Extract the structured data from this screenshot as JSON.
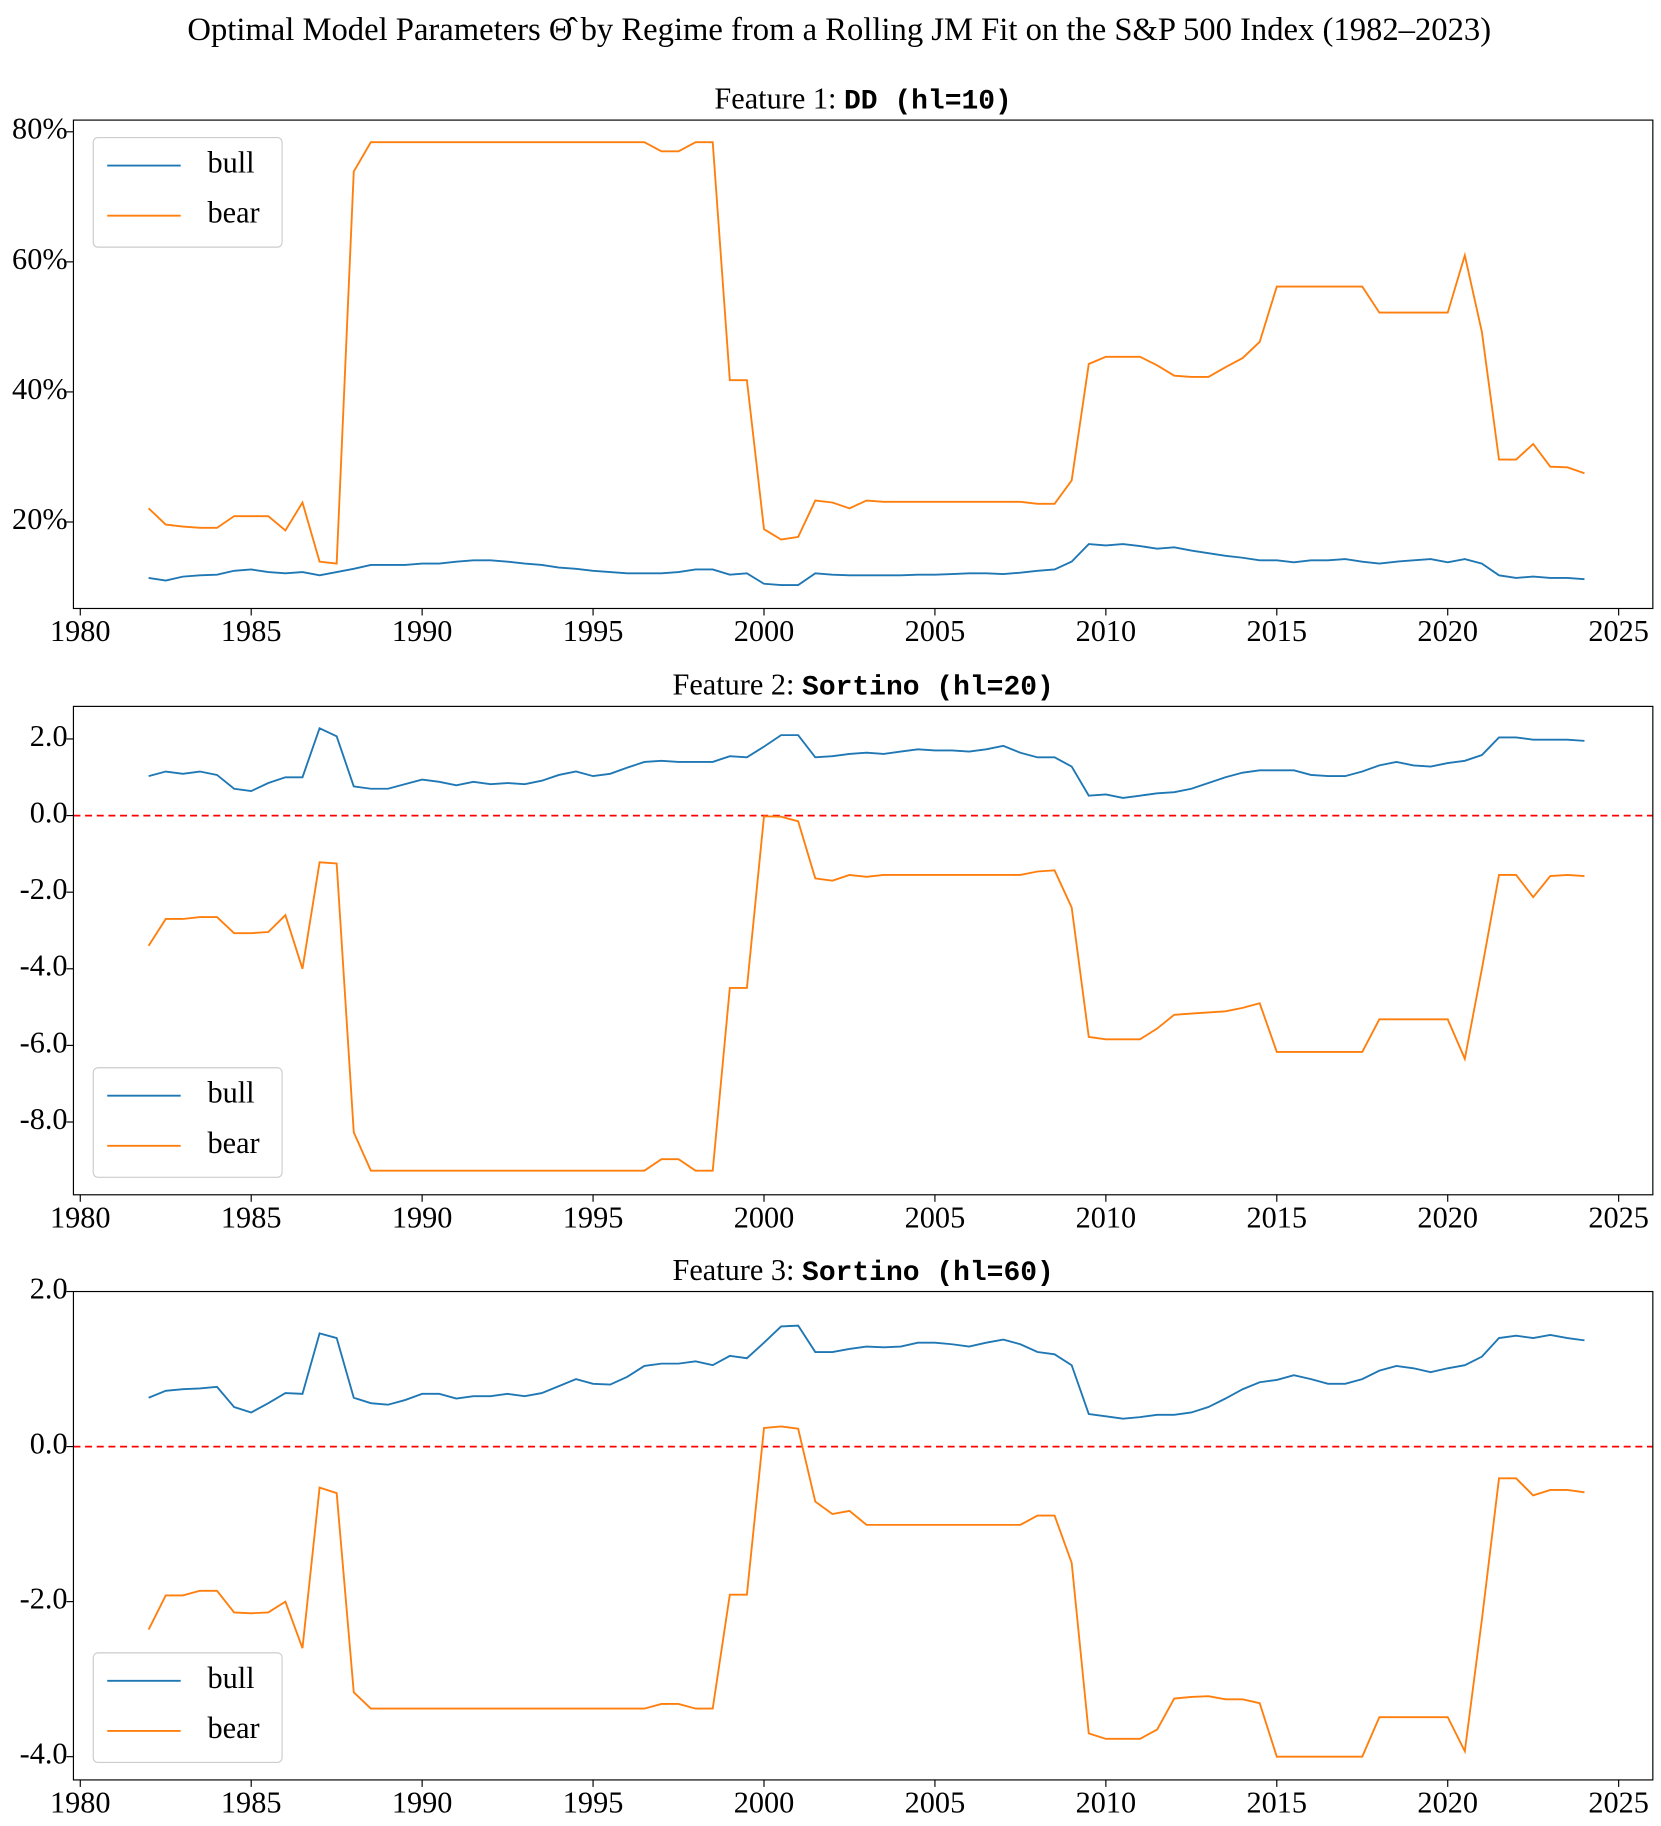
{
  "title": "Optimal Model Parameters Θ̂ by Regime from a Rolling JM Fit on the S&P 500 Index (1982–2023)",
  "chart_data": [
    {
      "type": "line",
      "title": "Feature 1: ",
      "title_code": "DD (hl=10)",
      "legend": "upper left",
      "x": [
        1982,
        1982.5,
        1983,
        1983.5,
        1984,
        1984.5,
        1985,
        1985.5,
        1986,
        1986.5,
        1987,
        1987.5,
        1988,
        1988.5,
        1989,
        1989.5,
        1990,
        1990.5,
        1991,
        1991.5,
        1992,
        1992.5,
        1993,
        1993.5,
        1994,
        1994.5,
        1995,
        1995.5,
        1996,
        1996.5,
        1997,
        1997.5,
        1998,
        1998.5,
        1999,
        1999.5,
        2000,
        2000.5,
        2001,
        2001.5,
        2002,
        2002.5,
        2003,
        2003.5,
        2004,
        2004.5,
        2005,
        2005.5,
        2006,
        2006.5,
        2007,
        2007.5,
        2008,
        2008.5,
        2009,
        2009.5,
        2010,
        2010.5,
        2011,
        2011.5,
        2012,
        2012.5,
        2013,
        2013.5,
        2014,
        2014.5,
        2015,
        2015.5,
        2016,
        2016.5,
        2017,
        2017.5,
        2018,
        2018.5,
        2019,
        2019.5,
        2020,
        2020.5,
        2021,
        2021.5,
        2022,
        2022.5,
        2023,
        2023.5,
        2024
      ],
      "xlim": [
        1979.8,
        2026
      ],
      "xticks": [
        1980,
        1985,
        1990,
        1995,
        2000,
        2005,
        2010,
        2015,
        2020,
        2025
      ],
      "ylim": [
        6.7,
        81.8
      ],
      "yticks": [
        {
          "value": 20,
          "label": "20%"
        },
        {
          "value": 40,
          "label": "40%"
        },
        {
          "value": 60,
          "label": "60%"
        },
        {
          "value": 80,
          "label": "80%"
        }
      ],
      "series": [
        {
          "name": "bull",
          "color": "#1f77b4",
          "values": [
            11.4,
            11.0,
            11.6,
            11.8,
            11.9,
            12.5,
            12.7,
            12.3,
            12.1,
            12.3,
            11.8,
            12.3,
            12.8,
            13.4,
            13.4,
            13.4,
            13.6,
            13.6,
            13.9,
            14.1,
            14.1,
            13.9,
            13.6,
            13.4,
            13.0,
            12.8,
            12.5,
            12.3,
            12.1,
            12.1,
            12.1,
            12.3,
            12.7,
            12.7,
            11.9,
            12.1,
            10.5,
            10.3,
            10.3,
            12.1,
            11.9,
            11.8,
            11.8,
            11.8,
            11.8,
            11.9,
            11.9,
            12.0,
            12.1,
            12.1,
            12.0,
            12.2,
            12.5,
            12.7,
            13.9,
            16.6,
            16.4,
            16.6,
            16.3,
            15.9,
            16.1,
            15.6,
            15.2,
            14.8,
            14.5,
            14.1,
            14.1,
            13.8,
            14.1,
            14.1,
            14.3,
            13.9,
            13.6,
            13.9,
            14.1,
            14.3,
            13.8,
            14.3,
            13.6,
            11.8,
            11.4,
            11.6,
            11.4,
            11.4,
            11.2
          ]
        },
        {
          "name": "bear",
          "color": "#ff7f0e",
          "values": [
            22.1,
            19.6,
            19.3,
            19.1,
            19.1,
            20.9,
            20.9,
            20.9,
            18.7,
            23.0,
            13.9,
            13.6,
            73.9,
            78.4,
            78.4,
            78.4,
            78.4,
            78.4,
            78.4,
            78.4,
            78.4,
            78.4,
            78.4,
            78.4,
            78.4,
            78.4,
            78.4,
            78.4,
            78.4,
            78.4,
            77.0,
            77.0,
            78.4,
            78.4,
            41.8,
            41.8,
            18.9,
            17.3,
            17.7,
            23.3,
            23.0,
            22.1,
            23.3,
            23.1,
            23.1,
            23.1,
            23.1,
            23.1,
            23.1,
            23.1,
            23.1,
            23.1,
            22.8,
            22.8,
            26.4,
            44.3,
            45.4,
            45.4,
            45.4,
            44.1,
            42.5,
            42.3,
            42.3,
            43.8,
            45.2,
            47.7,
            56.2,
            56.2,
            56.2,
            56.2,
            56.2,
            56.2,
            52.2,
            52.2,
            52.2,
            52.2,
            52.2,
            61.0,
            49.2,
            29.6,
            29.6,
            32.0,
            28.5,
            28.4,
            27.5
          ]
        }
      ]
    },
    {
      "type": "line",
      "title": "Feature 2: ",
      "title_code": "Sortino (hl=20)",
      "legend": "lower left",
      "x": [
        1982,
        1982.5,
        1983,
        1983.5,
        1984,
        1984.5,
        1985,
        1985.5,
        1986,
        1986.5,
        1987,
        1987.5,
        1988,
        1988.5,
        1989,
        1989.5,
        1990,
        1990.5,
        1991,
        1991.5,
        1992,
        1992.5,
        1993,
        1993.5,
        1994,
        1994.5,
        1995,
        1995.5,
        1996,
        1996.5,
        1997,
        1997.5,
        1998,
        1998.5,
        1999,
        1999.5,
        2000,
        2000.5,
        2001,
        2001.5,
        2002,
        2002.5,
        2003,
        2003.5,
        2004,
        2004.5,
        2005,
        2005.5,
        2006,
        2006.5,
        2007,
        2007.5,
        2008,
        2008.5,
        2009,
        2009.5,
        2010,
        2010.5,
        2011,
        2011.5,
        2012,
        2012.5,
        2013,
        2013.5,
        2014,
        2014.5,
        2015,
        2015.5,
        2016,
        2016.5,
        2017,
        2017.5,
        2018,
        2018.5,
        2019,
        2019.5,
        2020,
        2020.5,
        2021,
        2021.5,
        2022,
        2022.5,
        2023,
        2023.5,
        2024
      ],
      "xlim": [
        1979.8,
        2026
      ],
      "xticks": [
        1980,
        1985,
        1990,
        1995,
        2000,
        2005,
        2010,
        2015,
        2020,
        2025
      ],
      "ylim": [
        -9.9,
        2.85
      ],
      "yticks": [
        {
          "value": -8,
          "label": "-8.0"
        },
        {
          "value": -6,
          "label": "-6.0"
        },
        {
          "value": -4,
          "label": "-4.0"
        },
        {
          "value": -2,
          "label": "-2.0"
        },
        {
          "value": 0,
          "label": "0.0"
        },
        {
          "value": 2,
          "label": "2.0"
        }
      ],
      "reference_line": {
        "value": 0,
        "color": "#ff0000",
        "style": "dashed"
      },
      "series": [
        {
          "name": "bull",
          "color": "#1f77b4",
          "values": [
            1.03,
            1.15,
            1.09,
            1.15,
            1.06,
            0.7,
            0.64,
            0.85,
            1.0,
            1.0,
            2.28,
            2.07,
            0.76,
            0.7,
            0.7,
            0.82,
            0.94,
            0.88,
            0.79,
            0.88,
            0.82,
            0.85,
            0.82,
            0.91,
            1.06,
            1.15,
            1.03,
            1.09,
            1.25,
            1.4,
            1.43,
            1.4,
            1.4,
            1.4,
            1.55,
            1.52,
            1.8,
            2.1,
            2.1,
            1.52,
            1.55,
            1.61,
            1.64,
            1.61,
            1.67,
            1.73,
            1.7,
            1.7,
            1.67,
            1.73,
            1.82,
            1.64,
            1.52,
            1.52,
            1.28,
            0.52,
            0.55,
            0.46,
            0.52,
            0.58,
            0.61,
            0.7,
            0.85,
            1.0,
            1.12,
            1.18,
            1.18,
            1.18,
            1.06,
            1.03,
            1.03,
            1.15,
            1.31,
            1.4,
            1.31,
            1.28,
            1.37,
            1.43,
            1.58,
            2.04,
            2.04,
            1.98,
            1.98,
            1.98,
            1.95
          ]
        },
        {
          "name": "bear",
          "color": "#ff7f0e",
          "values": [
            -3.4,
            -2.7,
            -2.7,
            -2.65,
            -2.65,
            -3.07,
            -3.07,
            -3.04,
            -2.6,
            -4.0,
            -1.22,
            -1.25,
            -8.27,
            -9.27,
            -9.27,
            -9.27,
            -9.27,
            -9.27,
            -9.27,
            -9.27,
            -9.27,
            -9.27,
            -9.27,
            -9.27,
            -9.27,
            -9.27,
            -9.27,
            -9.27,
            -9.27,
            -9.27,
            -8.97,
            -8.97,
            -9.27,
            -9.27,
            -4.5,
            -4.5,
            -0.02,
            -0.03,
            -0.15,
            -1.64,
            -1.7,
            -1.55,
            -1.6,
            -1.55,
            -1.55,
            -1.55,
            -1.55,
            -1.55,
            -1.55,
            -1.55,
            -1.55,
            -1.55,
            -1.46,
            -1.43,
            -2.4,
            -5.78,
            -5.84,
            -5.84,
            -5.84,
            -5.56,
            -5.2,
            -5.17,
            -5.14,
            -5.11,
            -5.02,
            -4.9,
            -6.17,
            -6.17,
            -6.17,
            -6.17,
            -6.17,
            -6.17,
            -5.32,
            -5.32,
            -5.32,
            -5.32,
            -5.32,
            -6.35,
            -4.0,
            -1.55,
            -1.55,
            -2.13,
            -1.58,
            -1.55,
            -1.58
          ]
        }
      ]
    },
    {
      "type": "line",
      "title": "Feature 3: ",
      "title_code": "Sortino (hl=60)",
      "legend": "lower left",
      "x": [
        1982,
        1982.5,
        1983,
        1983.5,
        1984,
        1984.5,
        1985,
        1985.5,
        1986,
        1986.5,
        1987,
        1987.5,
        1988,
        1988.5,
        1989,
        1989.5,
        1990,
        1990.5,
        1991,
        1991.5,
        1992,
        1992.5,
        1993,
        1993.5,
        1994,
        1994.5,
        1995,
        1995.5,
        1996,
        1996.5,
        1997,
        1997.5,
        1998,
        1998.5,
        1999,
        1999.5,
        2000,
        2000.5,
        2001,
        2001.5,
        2002,
        2002.5,
        2003,
        2003.5,
        2004,
        2004.5,
        2005,
        2005.5,
        2006,
        2006.5,
        2007,
        2007.5,
        2008,
        2008.5,
        2009,
        2009.5,
        2010,
        2010.5,
        2011,
        2011.5,
        2012,
        2012.5,
        2013,
        2013.5,
        2014,
        2014.5,
        2015,
        2015.5,
        2016,
        2016.5,
        2017,
        2017.5,
        2018,
        2018.5,
        2019,
        2019.5,
        2020,
        2020.5,
        2021,
        2021.5,
        2022,
        2022.5,
        2023,
        2023.5,
        2024
      ],
      "xlim": [
        1979.8,
        2026
      ],
      "xticks": [
        1980,
        1985,
        1990,
        1995,
        2000,
        2005,
        2010,
        2015,
        2020,
        2025
      ],
      "ylim": [
        -4.3,
        2.0
      ],
      "yticks": [
        {
          "value": -4,
          "label": "-4.0"
        },
        {
          "value": -2,
          "label": "-2.0"
        },
        {
          "value": 0,
          "label": "0.0"
        },
        {
          "value": 2,
          "label": "2.0"
        }
      ],
      "reference_line": {
        "value": 0,
        "color": "#ff0000",
        "style": "dashed"
      },
      "series": [
        {
          "name": "bull",
          "color": "#1f77b4",
          "values": [
            0.63,
            0.72,
            0.74,
            0.75,
            0.77,
            0.51,
            0.44,
            0.56,
            0.69,
            0.68,
            1.46,
            1.4,
            0.63,
            0.56,
            0.54,
            0.6,
            0.68,
            0.68,
            0.62,
            0.65,
            0.65,
            0.68,
            0.65,
            0.69,
            0.78,
            0.87,
            0.81,
            0.8,
            0.9,
            1.04,
            1.07,
            1.07,
            1.1,
            1.05,
            1.17,
            1.14,
            1.34,
            1.55,
            1.56,
            1.22,
            1.22,
            1.26,
            1.29,
            1.28,
            1.29,
            1.34,
            1.34,
            1.32,
            1.29,
            1.34,
            1.38,
            1.32,
            1.22,
            1.19,
            1.05,
            0.42,
            0.39,
            0.36,
            0.38,
            0.41,
            0.41,
            0.44,
            0.51,
            0.62,
            0.74,
            0.83,
            0.86,
            0.92,
            0.87,
            0.81,
            0.81,
            0.87,
            0.98,
            1.04,
            1.01,
            0.96,
            1.01,
            1.05,
            1.16,
            1.4,
            1.43,
            1.4,
            1.44,
            1.4,
            1.37
          ]
        },
        {
          "name": "bear",
          "color": "#ff7f0e",
          "values": [
            -2.36,
            -1.92,
            -1.92,
            -1.86,
            -1.86,
            -2.14,
            -2.15,
            -2.14,
            -2.0,
            -2.6,
            -0.53,
            -0.6,
            -3.17,
            -3.38,
            -3.38,
            -3.38,
            -3.38,
            -3.38,
            -3.38,
            -3.38,
            -3.38,
            -3.38,
            -3.38,
            -3.38,
            -3.38,
            -3.38,
            -3.38,
            -3.38,
            -3.38,
            -3.38,
            -3.32,
            -3.32,
            -3.38,
            -3.38,
            -1.91,
            -1.91,
            0.24,
            0.26,
            0.23,
            -0.71,
            -0.87,
            -0.83,
            -1.01,
            -1.01,
            -1.01,
            -1.01,
            -1.01,
            -1.01,
            -1.01,
            -1.01,
            -1.01,
            -1.01,
            -0.89,
            -0.89,
            -1.5,
            -3.7,
            -3.77,
            -3.77,
            -3.77,
            -3.65,
            -3.25,
            -3.23,
            -3.22,
            -3.26,
            -3.26,
            -3.31,
            -4.0,
            -4.0,
            -4.0,
            -4.0,
            -4.0,
            -4.0,
            -3.49,
            -3.49,
            -3.49,
            -3.49,
            -3.49,
            -3.93,
            -2.23,
            -0.41,
            -0.41,
            -0.63,
            -0.56,
            -0.56,
            -0.59
          ]
        }
      ]
    }
  ]
}
